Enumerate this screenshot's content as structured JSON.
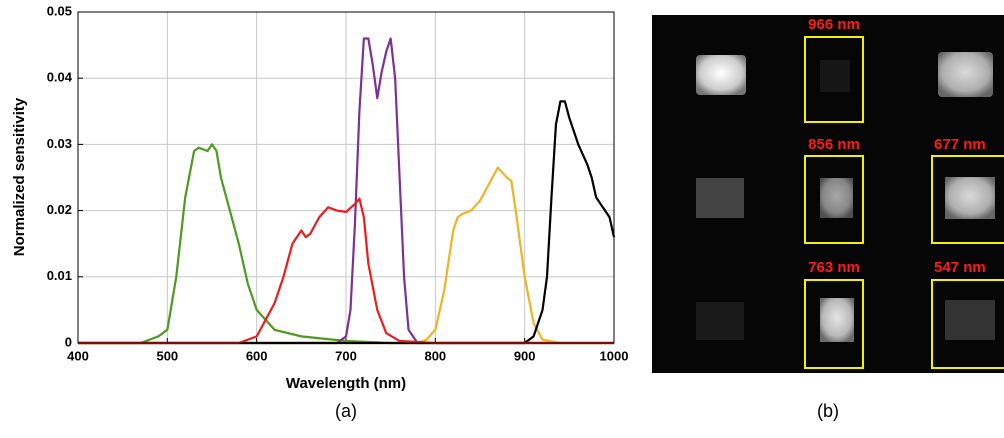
{
  "chart_data": {
    "type": "line",
    "x_label": "Wavelength (nm)",
    "y_label": "Normalized sensitivity",
    "xlim": [
      400,
      1000
    ],
    "ylim": [
      0,
      0.05
    ],
    "xticks": [
      400,
      500,
      600,
      700,
      800,
      900,
      1000
    ],
    "yticks": [
      0,
      0.01,
      0.02,
      0.03,
      0.04,
      0.05
    ],
    "grid": true,
    "series": [
      {
        "color": "#4d9a1e",
        "x": [
          400,
          470,
          490,
          500,
          510,
          520,
          530,
          535,
          545,
          550,
          555,
          560,
          570,
          580,
          590,
          600,
          620,
          650,
          700,
          750,
          1000
        ],
        "values": [
          0,
          0,
          0.001,
          0.002,
          0.01,
          0.022,
          0.029,
          0.0295,
          0.029,
          0.03,
          0.029,
          0.025,
          0.02,
          0.015,
          0.009,
          0.005,
          0.002,
          0.001,
          0.0003,
          0,
          0
        ]
      },
      {
        "color": "#7b3294",
        "x": [
          400,
          690,
          700,
          705,
          710,
          715,
          720,
          725,
          730,
          735,
          740,
          745,
          750,
          755,
          760,
          765,
          770,
          780,
          1000
        ],
        "values": [
          0,
          0,
          0.001,
          0.005,
          0.018,
          0.035,
          0.046,
          0.046,
          0.042,
          0.037,
          0.041,
          0.044,
          0.046,
          0.04,
          0.025,
          0.01,
          0.002,
          0,
          0
        ]
      },
      {
        "color": "#f0b323",
        "x": [
          400,
          780,
          790,
          800,
          810,
          820,
          825,
          830,
          840,
          850,
          860,
          870,
          880,
          885,
          890,
          900,
          910,
          920,
          940,
          1000
        ],
        "values": [
          0,
          0,
          0.0005,
          0.002,
          0.008,
          0.017,
          0.019,
          0.0195,
          0.02,
          0.0215,
          0.024,
          0.0265,
          0.025,
          0.0245,
          0.02,
          0.01,
          0.003,
          0.0005,
          0,
          0
        ]
      },
      {
        "color": "#000000",
        "x": [
          400,
          900,
          910,
          920,
          925,
          930,
          935,
          940,
          945,
          950,
          960,
          970,
          975,
          980,
          990,
          995,
          1000
        ],
        "values": [
          0,
          0,
          0.001,
          0.005,
          0.01,
          0.022,
          0.033,
          0.0365,
          0.0365,
          0.034,
          0.03,
          0.027,
          0.025,
          0.022,
          0.02,
          0.019,
          0.016
        ]
      },
      {
        "color": "#ee1c1c",
        "x": [
          400,
          580,
          600,
          620,
          630,
          640,
          650,
          655,
          660,
          670,
          680,
          690,
          700,
          710,
          715,
          720,
          725,
          735,
          745,
          760,
          800,
          1000
        ],
        "values": [
          0,
          0,
          0.001,
          0.006,
          0.01,
          0.015,
          0.017,
          0.016,
          0.0165,
          0.019,
          0.0205,
          0.02,
          0.0198,
          0.021,
          0.0218,
          0.019,
          0.012,
          0.005,
          0.0015,
          0.0003,
          0,
          0
        ]
      }
    ]
  },
  "captions": [
    "(a)",
    "(b)"
  ],
  "image_panel": {
    "labels": [
      "966 nm",
      "856 nm",
      "677 nm",
      "763 nm",
      "547 nm"
    ]
  }
}
